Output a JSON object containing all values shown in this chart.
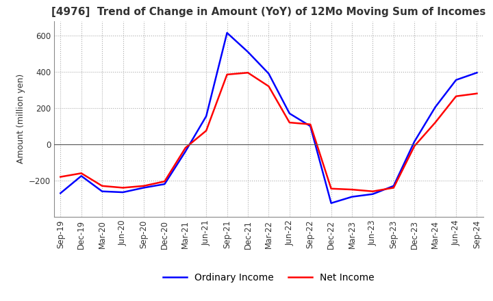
{
  "title": "[4976]  Trend of Change in Amount (YoY) of 12Mo Moving Sum of Incomes",
  "ylabel": "Amount (million yen)",
  "ylim": [
    -400,
    680
  ],
  "yticks": [
    -200,
    0,
    200,
    400,
    600
  ],
  "x_labels": [
    "Sep-19",
    "Dec-19",
    "Mar-20",
    "Jun-20",
    "Sep-20",
    "Dec-20",
    "Mar-21",
    "Jun-21",
    "Sep-21",
    "Dec-21",
    "Mar-22",
    "Jun-22",
    "Sep-22",
    "Dec-22",
    "Mar-23",
    "Jun-23",
    "Sep-23",
    "Dec-23",
    "Mar-24",
    "Jun-24",
    "Sep-24"
  ],
  "ordinary_income": [
    -270,
    -175,
    -260,
    -265,
    -240,
    -220,
    -40,
    155,
    615,
    510,
    390,
    170,
    100,
    -325,
    -290,
    -275,
    -230,
    15,
    205,
    355,
    395
  ],
  "net_income": [
    -180,
    -160,
    -230,
    -240,
    -230,
    -205,
    -20,
    75,
    385,
    395,
    320,
    120,
    110,
    -245,
    -250,
    -260,
    -240,
    -10,
    120,
    265,
    280
  ],
  "ordinary_color": "#0000ff",
  "net_color": "#ff0000",
  "grid_color": "#aaaaaa",
  "background_color": "#ffffff",
  "title_fontsize": 11,
  "axis_fontsize": 9,
  "tick_fontsize": 8.5,
  "legend_fontsize": 10
}
